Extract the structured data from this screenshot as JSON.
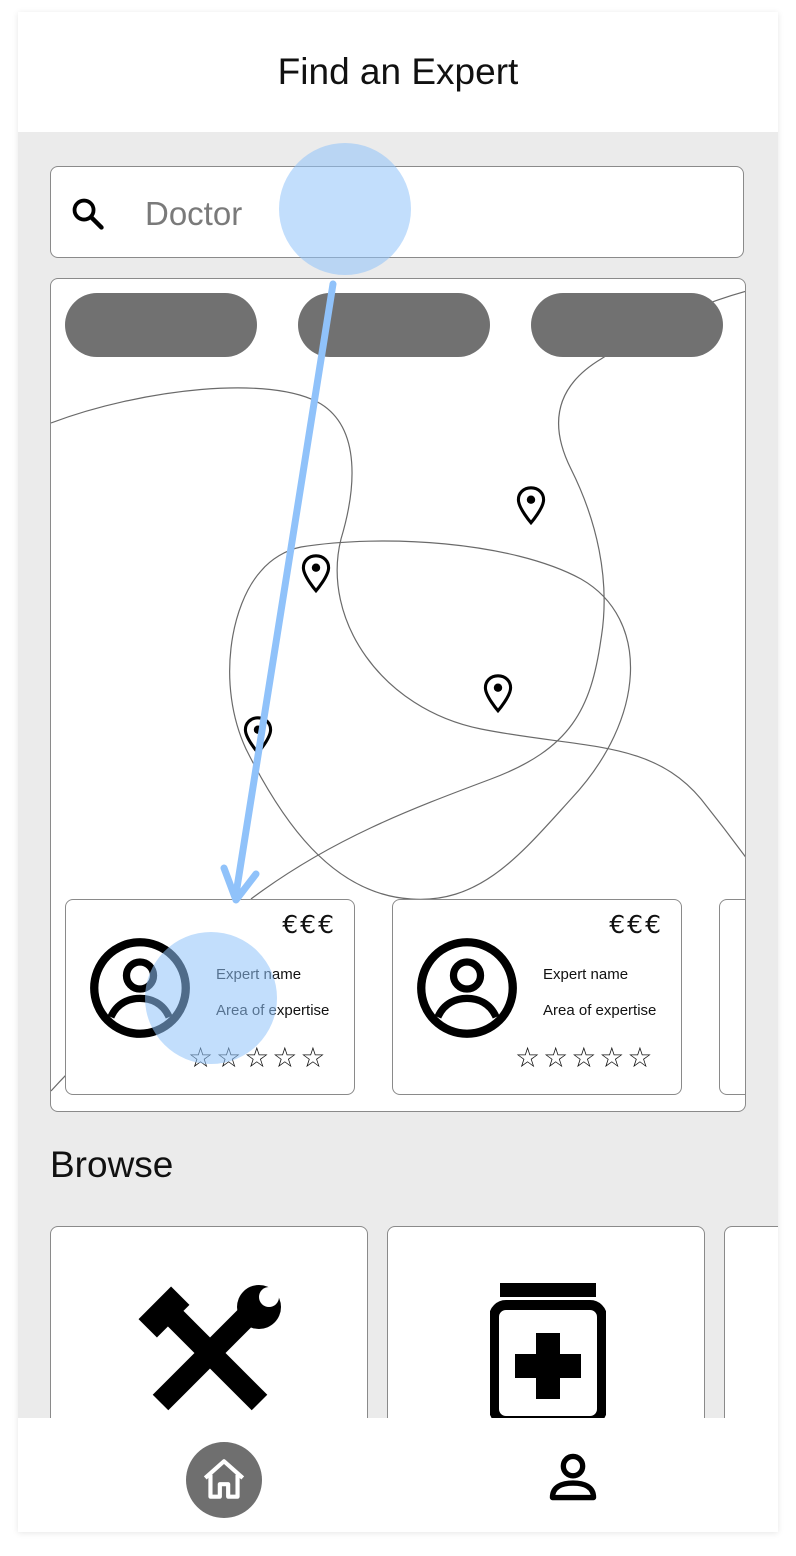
{
  "header": {
    "title": "Find an Expert"
  },
  "search": {
    "placeholder": "Doctor",
    "value": ""
  },
  "map": {
    "filter_chips": [
      "",
      "",
      ""
    ],
    "pin_count": 4
  },
  "expert_cards": [
    {
      "price": "€€€",
      "name": "Expert name",
      "area": "Area of expertise",
      "rating": 0,
      "max_rating": 5,
      "stars": "☆☆☆☆☆"
    },
    {
      "price": "€€€",
      "name": "Expert name",
      "area": "Area of expertise",
      "rating": 0,
      "max_rating": 5,
      "stars": "☆☆☆☆☆"
    }
  ],
  "browse": {
    "title": "Browse",
    "categories": [
      {
        "icon": "tools-icon"
      },
      {
        "icon": "medicine-icon"
      },
      {
        "icon": ""
      }
    ]
  },
  "bottom_nav": {
    "items": [
      {
        "icon": "home-icon",
        "active": true
      },
      {
        "icon": "person-icon",
        "active": false
      }
    ]
  },
  "gesture": {
    "type": "drag",
    "color": "#90c2fa"
  },
  "colors": {
    "background": "#ebebeb",
    "chip": "#717171",
    "active_nav": "#6f6f6f",
    "border": "#8a8a8a",
    "gesture": "#90c2fa"
  }
}
